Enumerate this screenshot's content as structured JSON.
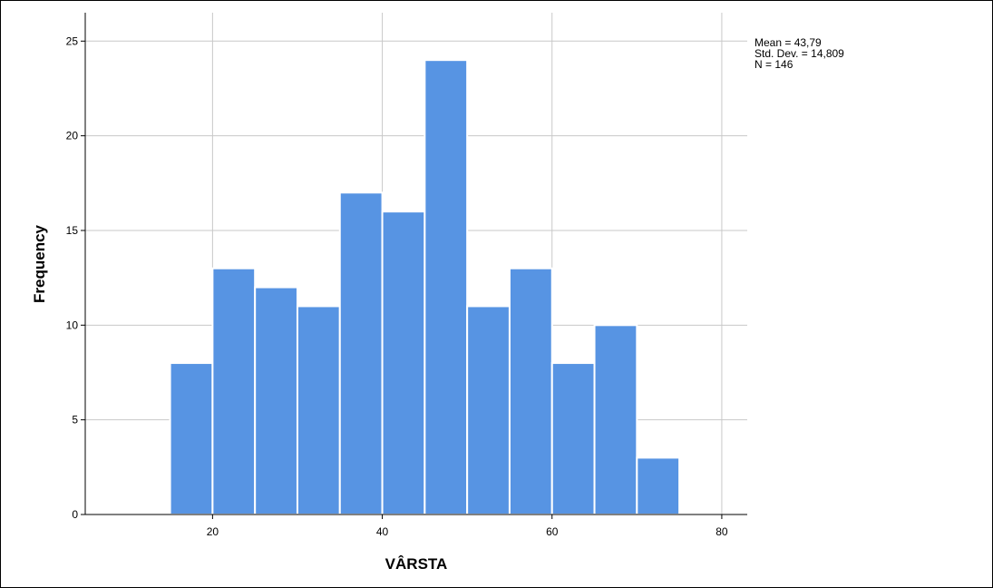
{
  "chart_data": {
    "type": "bar",
    "subtype": "histogram",
    "xlabel": "VÂRSTA",
    "ylabel": "Frequency",
    "xlim": [
      5,
      83
    ],
    "ylim": [
      0,
      26.5
    ],
    "xticks": [
      20,
      40,
      60,
      80
    ],
    "yticks": [
      0,
      5,
      10,
      15,
      20,
      25
    ],
    "grid": true,
    "bar_color": "#5794e3",
    "bins": [
      {
        "start": 15,
        "end": 20,
        "count": 8
      },
      {
        "start": 20,
        "end": 25,
        "count": 13
      },
      {
        "start": 25,
        "end": 30,
        "count": 12
      },
      {
        "start": 30,
        "end": 35,
        "count": 11
      },
      {
        "start": 35,
        "end": 40,
        "count": 17
      },
      {
        "start": 40,
        "end": 45,
        "count": 16
      },
      {
        "start": 45,
        "end": 50,
        "count": 24
      },
      {
        "start": 50,
        "end": 55,
        "count": 11
      },
      {
        "start": 55,
        "end": 60,
        "count": 13
      },
      {
        "start": 60,
        "end": 65,
        "count": 8
      },
      {
        "start": 65,
        "end": 70,
        "count": 10
      },
      {
        "start": 70,
        "end": 75,
        "count": 3
      }
    ],
    "stats": {
      "mean": "Mean = 43,79",
      "std_dev": "Std. Dev. = 14,809",
      "n": "N = 146"
    }
  }
}
